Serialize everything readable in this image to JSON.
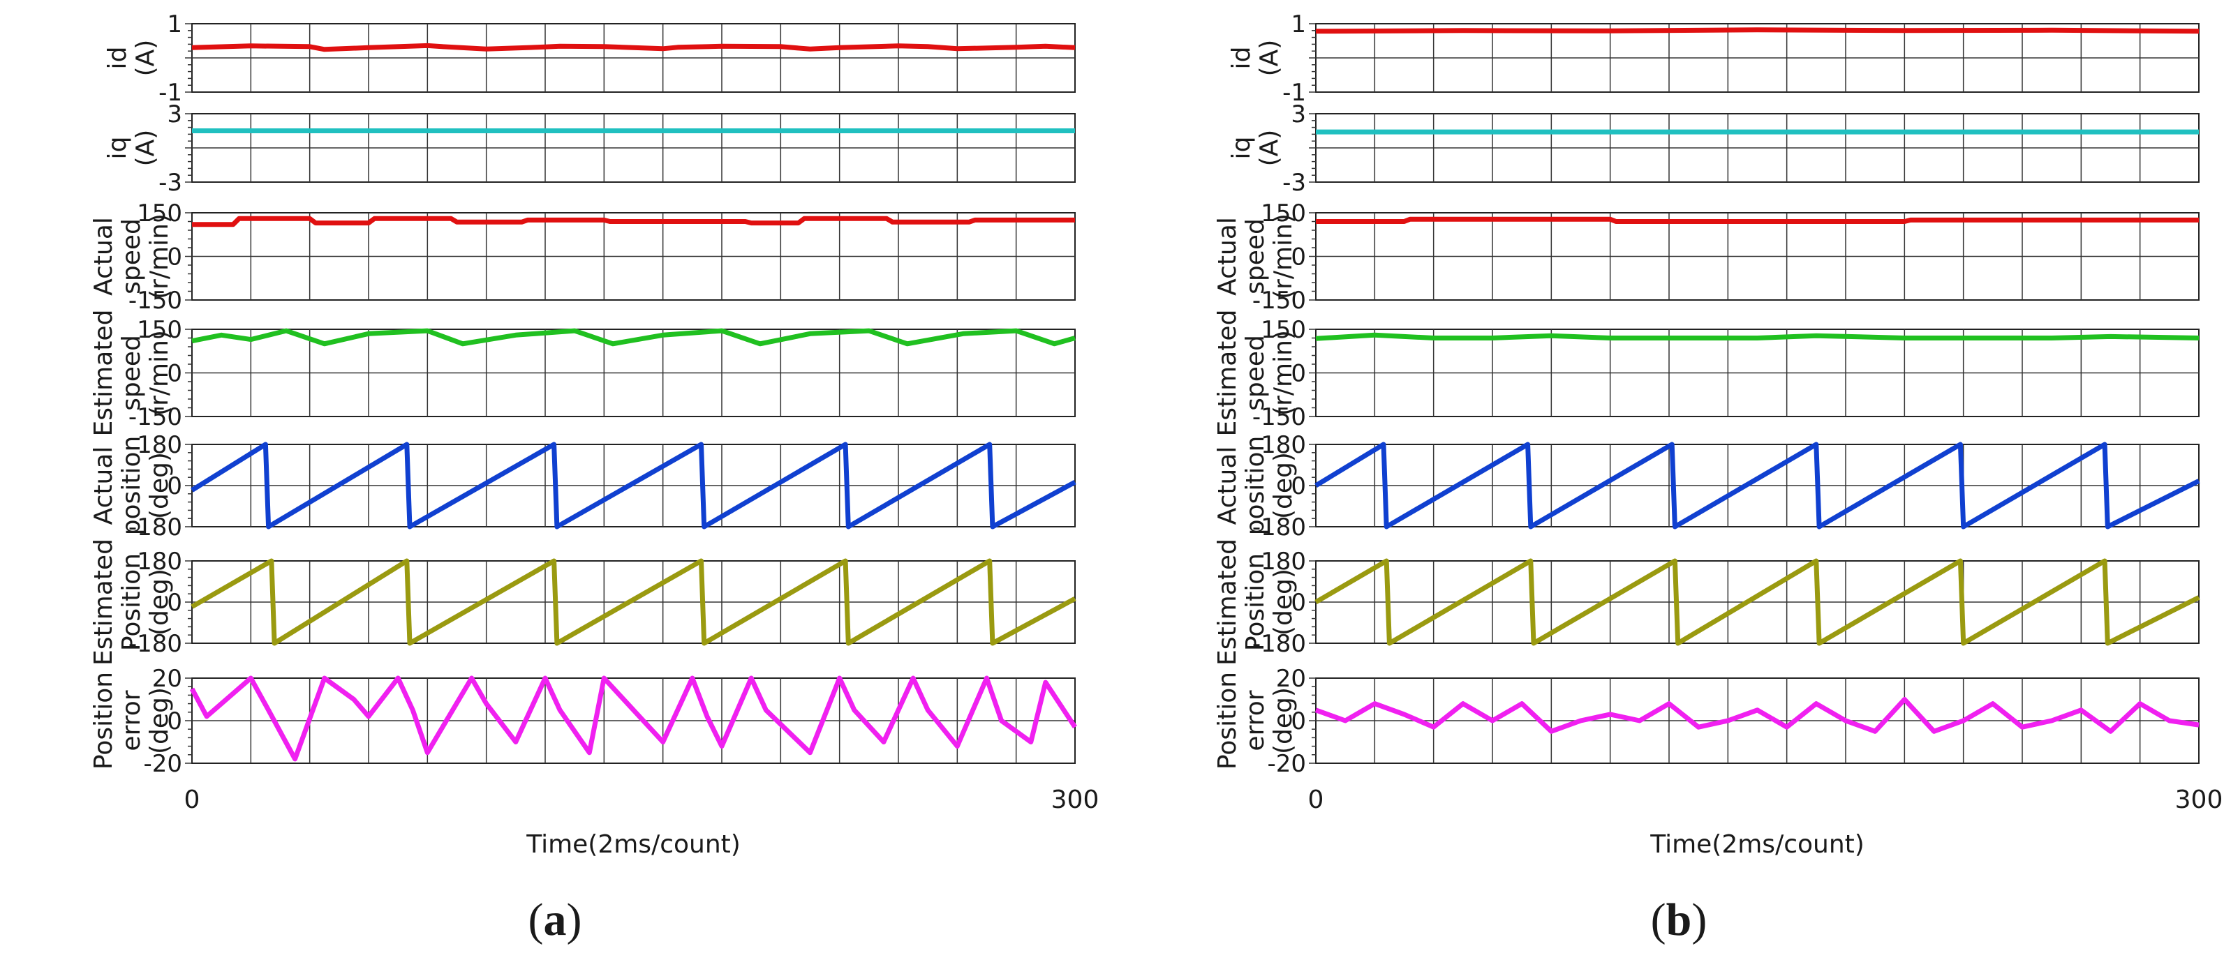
{
  "chart_data": [
    {
      "type": "line",
      "label": "(a)",
      "x_axis": {
        "min": 0,
        "max": 300,
        "tick_labels": [
          "0",
          "300"
        ],
        "xlabel": "Time(2ms/count)",
        "grid_divisions": 15
      },
      "panels": [
        {
          "name": "id",
          "ylabel_lines": [
            "id",
            "(A)"
          ],
          "ylim": [
            -1,
            1
          ],
          "tick_labels": [
            "1",
            "-1"
          ],
          "color": "#e01010",
          "x": [
            0,
            20,
            40,
            45,
            60,
            80,
            85,
            100,
            120,
            125,
            140,
            160,
            165,
            180,
            200,
            210,
            220,
            240,
            250,
            260,
            280,
            290,
            300
          ],
          "y": [
            0.3,
            0.35,
            0.33,
            0.25,
            0.3,
            0.36,
            0.33,
            0.26,
            0.32,
            0.34,
            0.33,
            0.27,
            0.31,
            0.34,
            0.33,
            0.26,
            0.3,
            0.35,
            0.33,
            0.27,
            0.31,
            0.34,
            0.3
          ]
        },
        {
          "name": "iq",
          "ylabel_lines": [
            "iq",
            "(A)"
          ],
          "ylim": [
            -3,
            3
          ],
          "tick_labels": [
            "3",
            "-3"
          ],
          "color": "#20c0c0",
          "x": [
            0,
            300
          ],
          "y": [
            1.5,
            1.5
          ]
        },
        {
          "name": "actual_speed",
          "ylabel_lines": [
            "Actual",
            "speed",
            "(r/min)"
          ],
          "ylim": [
            -150,
            150
          ],
          "tick_labels": [
            "150",
            "0",
            "-150"
          ],
          "color": "#e01010",
          "x": [
            0,
            14,
            16,
            40,
            42,
            60,
            62,
            88,
            90,
            112,
            114,
            140,
            142,
            188,
            190,
            206,
            208,
            236,
            238,
            264,
            266,
            300
          ],
          "y": [
            110,
            110,
            130,
            130,
            115,
            115,
            130,
            130,
            118,
            118,
            125,
            125,
            120,
            120,
            115,
            115,
            130,
            130,
            118,
            118,
            125,
            125
          ]
        },
        {
          "name": "estimated_speed",
          "ylabel_lines": [
            "Estimated",
            "speed",
            "(r/min)"
          ],
          "ylim": [
            -150,
            150
          ],
          "tick_labels": [
            "150",
            "0",
            "-150"
          ],
          "color": "#20c020",
          "x": [
            0,
            10,
            20,
            32,
            45,
            60,
            80,
            92,
            110,
            130,
            143,
            160,
            180,
            193,
            210,
            230,
            243,
            262,
            280,
            293,
            300
          ],
          "y": [
            110,
            130,
            115,
            145,
            100,
            135,
            145,
            100,
            130,
            145,
            100,
            130,
            145,
            100,
            135,
            145,
            100,
            135,
            145,
            100,
            120
          ]
        },
        {
          "name": "actual_position",
          "ylabel_lines": [
            "Actual",
            "position",
            "(deg)"
          ],
          "ylim": [
            -180,
            180
          ],
          "tick_labels": [
            "180",
            "0",
            "-180"
          ],
          "color": "#1040d0",
          "x": [
            0,
            25,
            26,
            73,
            74,
            123,
            124,
            173,
            174,
            222,
            223,
            271,
            272,
            300
          ],
          "y": [
            -20,
            180,
            -180,
            180,
            -180,
            180,
            -180,
            180,
            -180,
            180,
            -180,
            180,
            -180,
            15
          ]
        },
        {
          "name": "estimated_position",
          "ylabel_lines": [
            "Estimated",
            "Position",
            "(deg)"
          ],
          "ylim": [
            -180,
            180
          ],
          "tick_labels": [
            "180",
            "0",
            "-180"
          ],
          "color": "#9a9a10",
          "x": [
            0,
            27,
            28,
            73,
            74,
            123,
            124,
            173,
            174,
            222,
            223,
            271,
            272,
            300
          ],
          "y": [
            -20,
            180,
            -180,
            180,
            -180,
            180,
            -180,
            180,
            -180,
            180,
            -180,
            180,
            -180,
            15
          ]
        },
        {
          "name": "position_error",
          "ylabel_lines": [
            "Position",
            "error",
            "(deg)"
          ],
          "ylim": [
            -20,
            20
          ],
          "tick_labels": [
            "20",
            "0",
            "-20"
          ],
          "color": "#f020f0",
          "x": [
            0,
            5,
            20,
            26,
            35,
            45,
            55,
            60,
            70,
            75,
            80,
            95,
            100,
            110,
            120,
            125,
            135,
            140,
            150,
            160,
            170,
            175,
            180,
            190,
            195,
            210,
            220,
            225,
            235,
            245,
            250,
            260,
            270,
            275,
            285,
            290,
            300
          ],
          "y": [
            15,
            2,
            20,
            5,
            -18,
            20,
            10,
            2,
            20,
            5,
            -15,
            20,
            8,
            -10,
            20,
            5,
            -15,
            20,
            5,
            -10,
            20,
            2,
            -12,
            20,
            5,
            -15,
            20,
            5,
            -10,
            20,
            5,
            -12,
            20,
            0,
            -10,
            18,
            -3
          ]
        }
      ]
    },
    {
      "type": "line",
      "label": "(b)",
      "x_axis": {
        "min": 0,
        "max": 300,
        "tick_labels": [
          "0",
          "300"
        ],
        "xlabel": "Time(2ms/count)",
        "grid_divisions": 15
      },
      "panels": [
        {
          "name": "id",
          "ylabel_lines": [
            "id",
            "(A)"
          ],
          "ylim": [
            -1,
            1
          ],
          "tick_labels": [
            "1",
            "-1"
          ],
          "color": "#e01010",
          "x": [
            0,
            50,
            100,
            150,
            200,
            250,
            300
          ],
          "y": [
            0.78,
            0.8,
            0.79,
            0.82,
            0.8,
            0.81,
            0.78
          ]
        },
        {
          "name": "iq",
          "ylabel_lines": [
            "iq",
            "(A)"
          ],
          "ylim": [
            -3,
            3
          ],
          "tick_labels": [
            "3",
            "-3"
          ],
          "color": "#20c0c0",
          "x": [
            0,
            300
          ],
          "y": [
            1.4,
            1.4
          ]
        },
        {
          "name": "actual_speed",
          "ylabel_lines": [
            "Actual",
            "speed",
            "(r/min)"
          ],
          "ylim": [
            -150,
            150
          ],
          "tick_labels": [
            "150",
            "0",
            "-150"
          ],
          "color": "#e01010",
          "x": [
            0,
            30,
            32,
            100,
            102,
            200,
            202,
            300
          ],
          "y": [
            120,
            120,
            128,
            128,
            120,
            120,
            125,
            125
          ]
        },
        {
          "name": "estimated_speed",
          "ylabel_lines": [
            "Estimated",
            "speed",
            "(r/min)"
          ],
          "ylim": [
            -150,
            150
          ],
          "tick_labels": [
            "150",
            "0",
            "-150"
          ],
          "color": "#20c020",
          "x": [
            0,
            20,
            40,
            60,
            80,
            100,
            150,
            170,
            200,
            250,
            270,
            300
          ],
          "y": [
            118,
            130,
            120,
            120,
            128,
            120,
            120,
            128,
            120,
            120,
            125,
            120
          ]
        },
        {
          "name": "actual_position",
          "ylabel_lines": [
            "Actual",
            "position",
            "(deg)"
          ],
          "ylim": [
            -180,
            180
          ],
          "tick_labels": [
            "180",
            "0",
            "-180"
          ],
          "color": "#1040d0",
          "x": [
            0,
            23,
            24,
            72,
            73,
            121,
            122,
            170,
            171,
            219,
            220,
            268,
            269,
            300
          ],
          "y": [
            0,
            180,
            -180,
            180,
            -180,
            180,
            -180,
            180,
            -180,
            180,
            -180,
            180,
            -180,
            20
          ]
        },
        {
          "name": "estimated_position",
          "ylabel_lines": [
            "Estimated",
            "Position",
            "(deg)"
          ],
          "ylim": [
            -180,
            180
          ],
          "tick_labels": [
            "180",
            "0",
            "-180"
          ],
          "color": "#9a9a10",
          "x": [
            0,
            24,
            25,
            73,
            74,
            122,
            123,
            170,
            171,
            219,
            220,
            268,
            269,
            300
          ],
          "y": [
            0,
            180,
            -180,
            180,
            -180,
            180,
            -180,
            180,
            -180,
            180,
            -180,
            180,
            -180,
            20
          ]
        },
        {
          "name": "position_error",
          "ylabel_lines": [
            "Position",
            "error",
            "(deg)"
          ],
          "ylim": [
            -20,
            20
          ],
          "tick_labels": [
            "20",
            "0",
            "-20"
          ],
          "color": "#f020f0",
          "x": [
            0,
            10,
            20,
            30,
            40,
            50,
            60,
            70,
            80,
            90,
            100,
            110,
            120,
            130,
            140,
            150,
            160,
            170,
            180,
            190,
            200,
            210,
            220,
            230,
            240,
            250,
            260,
            270,
            280,
            290,
            300
          ],
          "y": [
            5,
            0,
            8,
            3,
            -3,
            8,
            0,
            8,
            -5,
            0,
            3,
            0,
            8,
            -3,
            0,
            5,
            -3,
            8,
            0,
            -5,
            10,
            -5,
            0,
            8,
            -3,
            0,
            5,
            -5,
            8,
            0,
            -2
          ]
        }
      ]
    }
  ]
}
